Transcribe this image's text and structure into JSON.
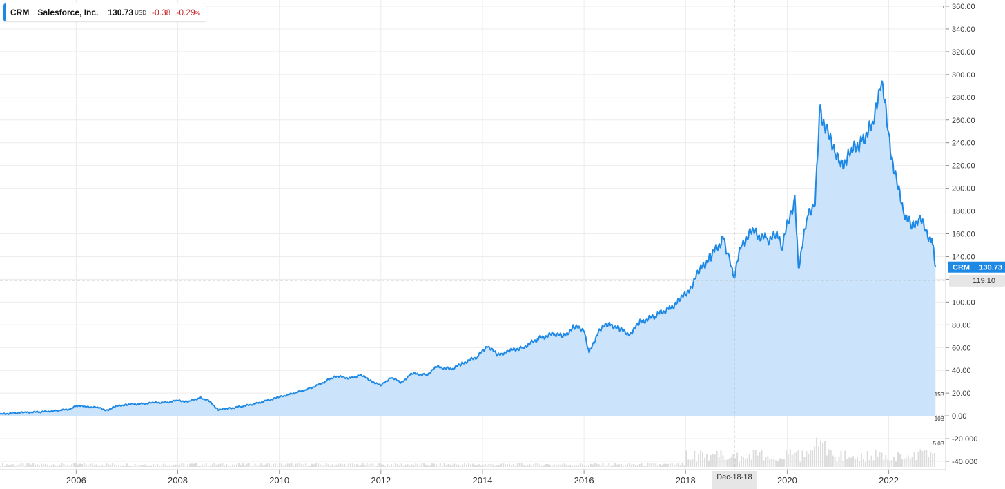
{
  "legend": {
    "symbol": "CRM",
    "name": "Salesforce, Inc.",
    "price": "130.73",
    "currency": "USD",
    "change": "-0.38",
    "change_pct": "-0.29",
    "pct_unit": "%"
  },
  "colors": {
    "line": "#1e88e5",
    "fill": "#cce4fb",
    "down": "#c62828",
    "grid": "#ececec"
  },
  "chart_data": {
    "type": "area",
    "series": [
      {
        "name": "CRM",
        "points": [
          [
            2004.5,
            1.5
          ],
          [
            2004.8,
            2.5
          ],
          [
            2005.0,
            3.0
          ],
          [
            2005.3,
            3.5
          ],
          [
            2005.6,
            4.5
          ],
          [
            2005.9,
            6.0
          ],
          [
            2006.0,
            9.0
          ],
          [
            2006.2,
            8.0
          ],
          [
            2006.4,
            7.5
          ],
          [
            2006.6,
            5.0
          ],
          [
            2006.8,
            8.5
          ],
          [
            2007.0,
            10.0
          ],
          [
            2007.3,
            10.5
          ],
          [
            2007.5,
            11.5
          ],
          [
            2007.8,
            12.0
          ],
          [
            2008.0,
            13.5
          ],
          [
            2008.2,
            12.5
          ],
          [
            2008.45,
            16.0
          ],
          [
            2008.6,
            13.5
          ],
          [
            2008.8,
            5.5
          ],
          [
            2009.0,
            6.5
          ],
          [
            2009.3,
            8.5
          ],
          [
            2009.6,
            11.5
          ],
          [
            2010.0,
            16.5
          ],
          [
            2010.3,
            20.0
          ],
          [
            2010.6,
            24.0
          ],
          [
            2010.9,
            30.0
          ],
          [
            2011.1,
            35.0
          ],
          [
            2011.4,
            33.0
          ],
          [
            2011.6,
            36.0
          ],
          [
            2011.8,
            31.0
          ],
          [
            2012.0,
            26.5
          ],
          [
            2012.2,
            34.0
          ],
          [
            2012.4,
            29.0
          ],
          [
            2012.6,
            37.0
          ],
          [
            2012.9,
            36.0
          ],
          [
            2013.1,
            43.0
          ],
          [
            2013.4,
            41.0
          ],
          [
            2013.6,
            46.0
          ],
          [
            2013.9,
            52.0
          ],
          [
            2014.1,
            62.0
          ],
          [
            2014.3,
            53.0
          ],
          [
            2014.5,
            57.0
          ],
          [
            2014.8,
            60.0
          ],
          [
            2015.1,
            68.0
          ],
          [
            2015.4,
            72.0
          ],
          [
            2015.6,
            70.0
          ],
          [
            2015.8,
            78.0
          ],
          [
            2016.0,
            76.0
          ],
          [
            2016.1,
            55.0
          ],
          [
            2016.3,
            76.0
          ],
          [
            2016.5,
            81.0
          ],
          [
            2016.7,
            76.0
          ],
          [
            2016.9,
            72.0
          ],
          [
            2017.1,
            82.0
          ],
          [
            2017.4,
            88.0
          ],
          [
            2017.7,
            95.0
          ],
          [
            2017.9,
            102.0
          ],
          [
            2018.1,
            113.0
          ],
          [
            2018.3,
            130.0
          ],
          [
            2018.5,
            140.0
          ],
          [
            2018.75,
            157.0
          ],
          [
            2018.85,
            138.0
          ],
          [
            2018.95,
            122.0
          ],
          [
            2019.1,
            150.0
          ],
          [
            2019.3,
            162.0
          ],
          [
            2019.6,
            155.0
          ],
          [
            2019.8,
            158.0
          ],
          [
            2019.9,
            150.0
          ],
          [
            2020.05,
            175.0
          ],
          [
            2020.15,
            190.0
          ],
          [
            2020.22,
            130.0
          ],
          [
            2020.4,
            175.0
          ],
          [
            2020.55,
            190.0
          ],
          [
            2020.65,
            270.0
          ],
          [
            2020.8,
            245.0
          ],
          [
            2020.95,
            235.0
          ],
          [
            2021.05,
            220.0
          ],
          [
            2021.25,
            230.0
          ],
          [
            2021.5,
            245.0
          ],
          [
            2021.7,
            255.0
          ],
          [
            2021.85,
            300.0
          ],
          [
            2022.0,
            245.0
          ],
          [
            2022.15,
            205.0
          ],
          [
            2022.3,
            180.0
          ],
          [
            2022.45,
            165.0
          ],
          [
            2022.6,
            175.0
          ],
          [
            2022.75,
            160.0
          ],
          [
            2022.85,
            155.0
          ],
          [
            2022.92,
            130.73
          ]
        ]
      }
    ],
    "xlim": [
      2004.5,
      2022.93
    ],
    "x_ticks": [
      "2006",
      "2008",
      "2010",
      "2012",
      "2014",
      "2016",
      "2018",
      "2020",
      "2022"
    ],
    "y_ticks": [
      "360.00",
      "340.00",
      "320.00",
      "300.00",
      "280.00",
      "260.00",
      "240.00",
      "220.00",
      "200.00",
      "180.00",
      "160.00",
      "140.00",
      "120.00",
      "100.00",
      "80.00",
      "60.00",
      "40.00",
      "20.00",
      "0.00",
      "-20.000",
      "-40.000"
    ],
    "ylim": [
      -40,
      360
    ],
    "volume_labels": [
      "15B",
      "10B",
      "5.0B"
    ],
    "crosshair": {
      "x_label": "Dec-18-18",
      "y_label": "119.10",
      "x_value": 2018.96,
      "y_value": 119.1
    },
    "last_label": {
      "symbol": "CRM",
      "value": "130.73"
    },
    "grid": true
  }
}
